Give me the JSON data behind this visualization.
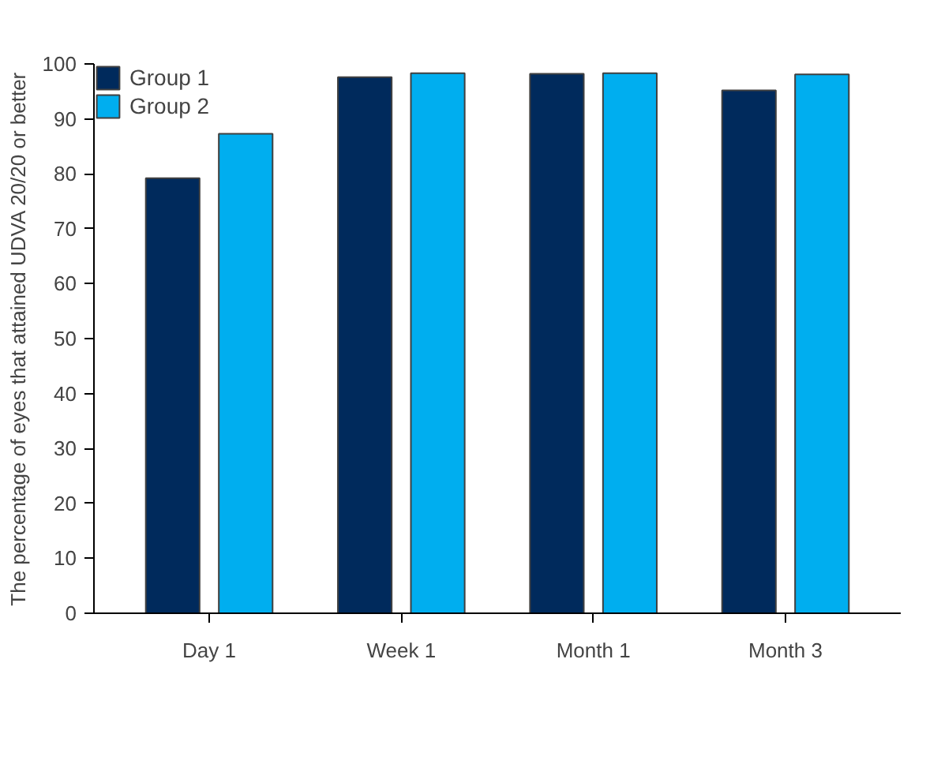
{
  "chart_data": {
    "type": "bar",
    "ylabel": "The percentage of eyes that attained UDVA 20/20 or better",
    "categories": [
      "Day 1",
      "Week 1",
      "Month 1",
      "Month 3"
    ],
    "series": [
      {
        "name": "Group 1",
        "color": "#002a5c",
        "values": [
          79.2,
          97.6,
          98.2,
          95.2
        ]
      },
      {
        "name": "Group 2",
        "color": "#00aeef",
        "values": [
          87.3,
          98.3,
          98.3,
          98.1
        ]
      }
    ],
    "ylim": [
      0,
      100
    ],
    "yticks": [
      0,
      10,
      20,
      30,
      40,
      50,
      60,
      70,
      80,
      90,
      100
    ],
    "grid": false,
    "legend": "top left"
  }
}
